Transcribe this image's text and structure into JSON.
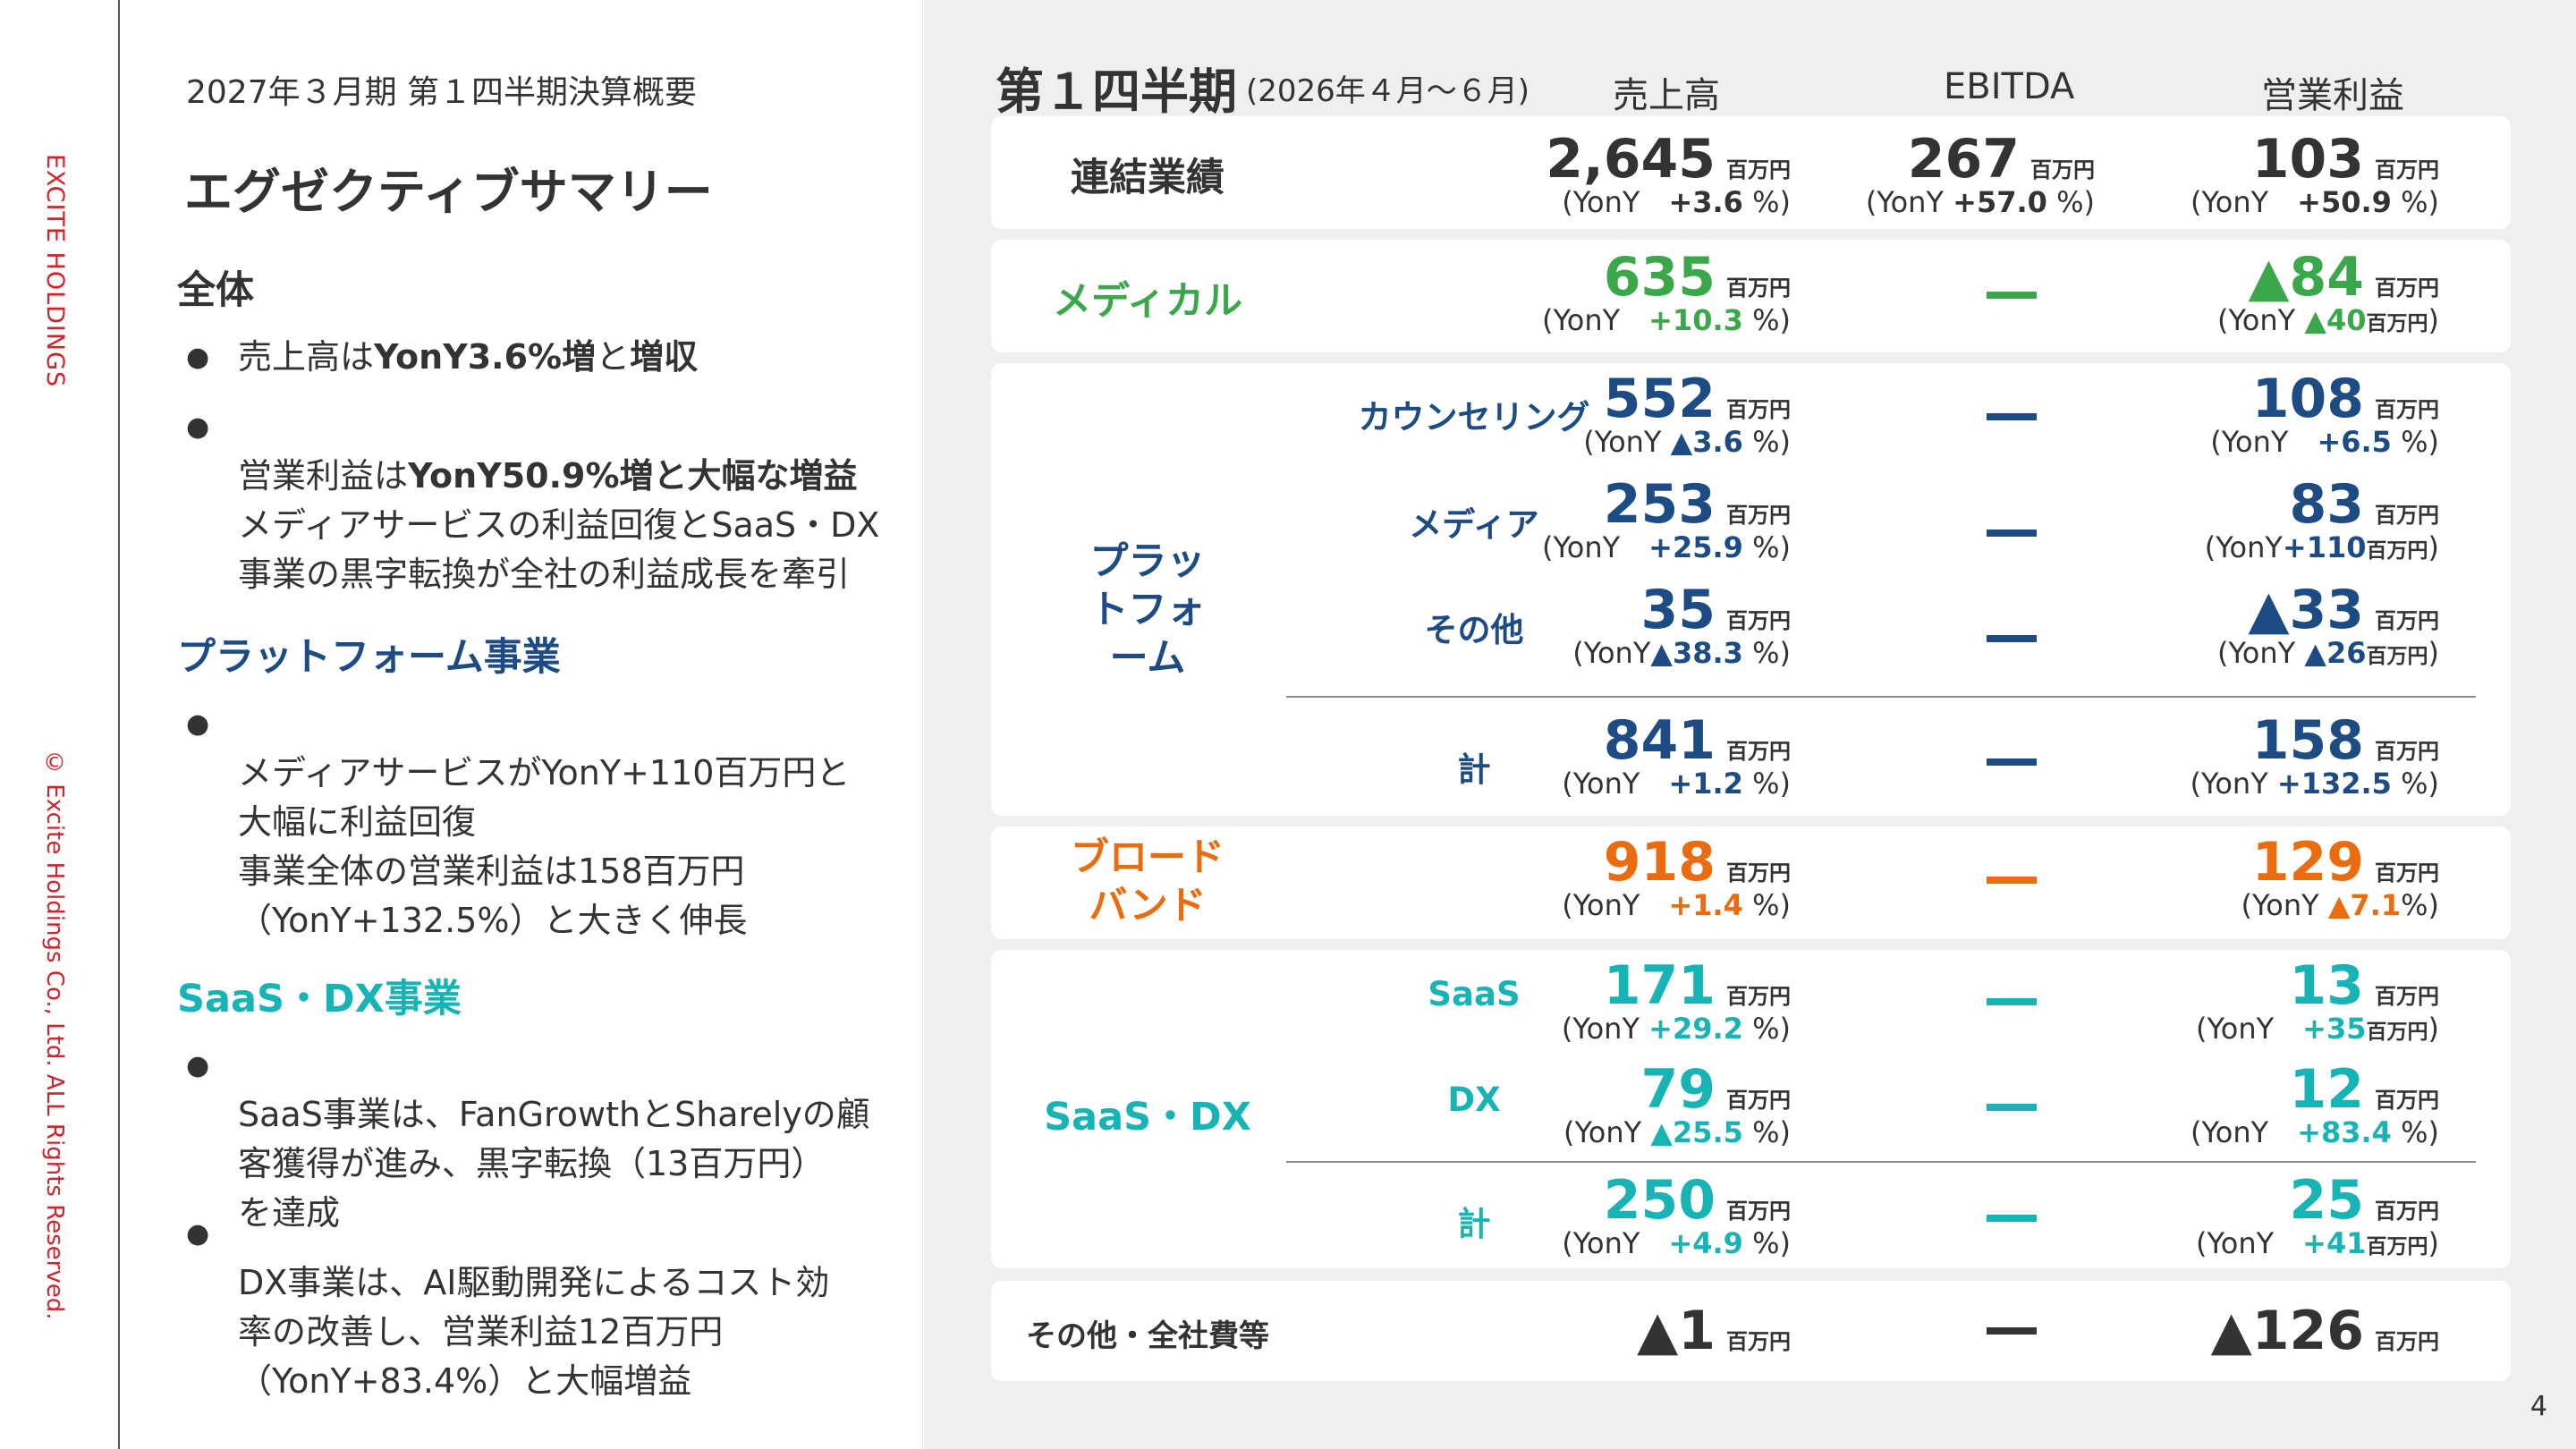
{
  "sidebar": {
    "brand": "EXCITE HOLDINGS",
    "copyright": "© Excite Holdings Co., Ltd. ALL Rights Reserved."
  },
  "summary": {
    "subtitle": "2027年３月期 第１四半期決算概要",
    "title": "エグゼクティブサマリー",
    "sections": [
      {
        "heading": "全体",
        "bullets": [
          {
            "parts": [
              {
                "t": "売上高は",
                "b": false
              },
              {
                "t": "YonY3.6%増",
                "b": true
              },
              {
                "t": "と",
                "b": false
              },
              {
                "t": "増収",
                "b": true
              }
            ]
          },
          {
            "parts": [
              {
                "t": "営業利益は",
                "b": false
              },
              {
                "t": "YonY50.9%増と大幅な増益",
                "b": true
              },
              {
                "t": "\nメディアサービスの利益回復とSaaS・DX\n事業の黒字転換が全社の利益成長を牽引",
                "b": false
              }
            ]
          }
        ]
      },
      {
        "heading": "プラットフォーム事業",
        "bullets": [
          {
            "parts": [
              {
                "t": "メディアサービスがYonY+110百万円と\n大幅に利益回復\n事業全体の営業利益は158百万円\n（YonY+132.5%）と大きく伸長",
                "b": false
              }
            ]
          }
        ]
      },
      {
        "heading": "SaaS・DX事業",
        "bullets": [
          {
            "parts": [
              {
                "t": "SaaS事業は、FanGrowthとSharelyの顧\n客獲得が進み、黒字転換（13百万円）\nを達成",
                "b": false
              }
            ]
          },
          {
            "parts": [
              {
                "t": "DX事業は、AI駆動開発によるコスト効\n率の改善し、営業利益12百万円\n（YonY+83.4%）と大幅増益",
                "b": false
              }
            ]
          }
        ]
      }
    ]
  },
  "panel": {
    "title": "第１四半期",
    "period": "(2026年４月～６月)",
    "columns": [
      "売上高",
      "EBITDA",
      "営業利益"
    ],
    "unit": "百万円",
    "dash_symbol": "—",
    "rows": [
      {
        "key": "consolidated",
        "label": "連結業績",
        "color": "#333333",
        "sales": {
          "value": "2,645",
          "yoy": "+3.6",
          "suffix": "%"
        },
        "ebitda": {
          "value": "267",
          "yoy": "+57.0",
          "suffix": "%"
        },
        "op": {
          "value": "103",
          "yoy": "+50.9",
          "suffix": "%"
        }
      },
      {
        "key": "medical",
        "label": "メディカル",
        "color": "#3aa84a",
        "sales": {
          "value": "635",
          "yoy": "+10.3",
          "suffix": "%"
        },
        "op": {
          "value": "▲84",
          "yoy": "▲40",
          "suffix": "百万円"
        }
      },
      {
        "key": "platform",
        "label": "プラットフォーム",
        "color": "#1d4c85",
        "subrows": [
          {
            "label": "カウンセリング",
            "sales": {
              "value": "552",
              "yoy": "▲3.6",
              "suffix": "%"
            },
            "op": {
              "value": "108",
              "yoy": "+6.5",
              "suffix": "%"
            }
          },
          {
            "label": "メディア",
            "sales": {
              "value": "253",
              "yoy": "+25.9",
              "suffix": "%"
            },
            "op": {
              "value": "83",
              "yoy": "+110",
              "suffix": "百万円"
            }
          },
          {
            "label": "その他",
            "sales": {
              "value": "35",
              "yoy": "▲38.3",
              "suffix": "%"
            },
            "op": {
              "value": "▲33",
              "yoy": "▲26",
              "suffix": "百万円"
            }
          },
          {
            "label": "計",
            "sales": {
              "value": "841",
              "yoy": "+1.2",
              "suffix": "%"
            },
            "op": {
              "value": "158",
              "yoy": "+132.5",
              "suffix": "%"
            }
          }
        ]
      },
      {
        "key": "broadband",
        "label": "ブロード\nバンド",
        "color": "#ea6c0e",
        "sales": {
          "value": "918",
          "yoy": "+1.4",
          "suffix": "%"
        },
        "op": {
          "value": "129",
          "yoy": "▲7.1",
          "suffix": "%"
        }
      },
      {
        "key": "saasdx",
        "label": "SaaS・DX",
        "color": "#17b3b5",
        "subrows": [
          {
            "label": "SaaS",
            "sales": {
              "value": "171",
              "yoy": "+29.2",
              "suffix": "%"
            },
            "op": {
              "value": "13",
              "yoy": "+35",
              "suffix": "百万円"
            }
          },
          {
            "label": "DX",
            "sales": {
              "value": "79",
              "yoy": "▲25.5",
              "suffix": "%"
            },
            "op": {
              "value": "12",
              "yoy": "+83.4",
              "suffix": "%"
            }
          },
          {
            "label": "計",
            "sales": {
              "value": "250",
              "yoy": "+4.9",
              "suffix": "%"
            },
            "op": {
              "value": "25",
              "yoy": "+41",
              "suffix": "百万円"
            }
          }
        ]
      },
      {
        "key": "other",
        "label": "その他・全社費等",
        "color": "#333333",
        "sales": {
          "value": "▲1"
        },
        "op": {
          "value": "▲126"
        }
      }
    ],
    "yoy_prefix": "(YonY",
    "yoy_close": ")",
    "page_number": "4"
  }
}
